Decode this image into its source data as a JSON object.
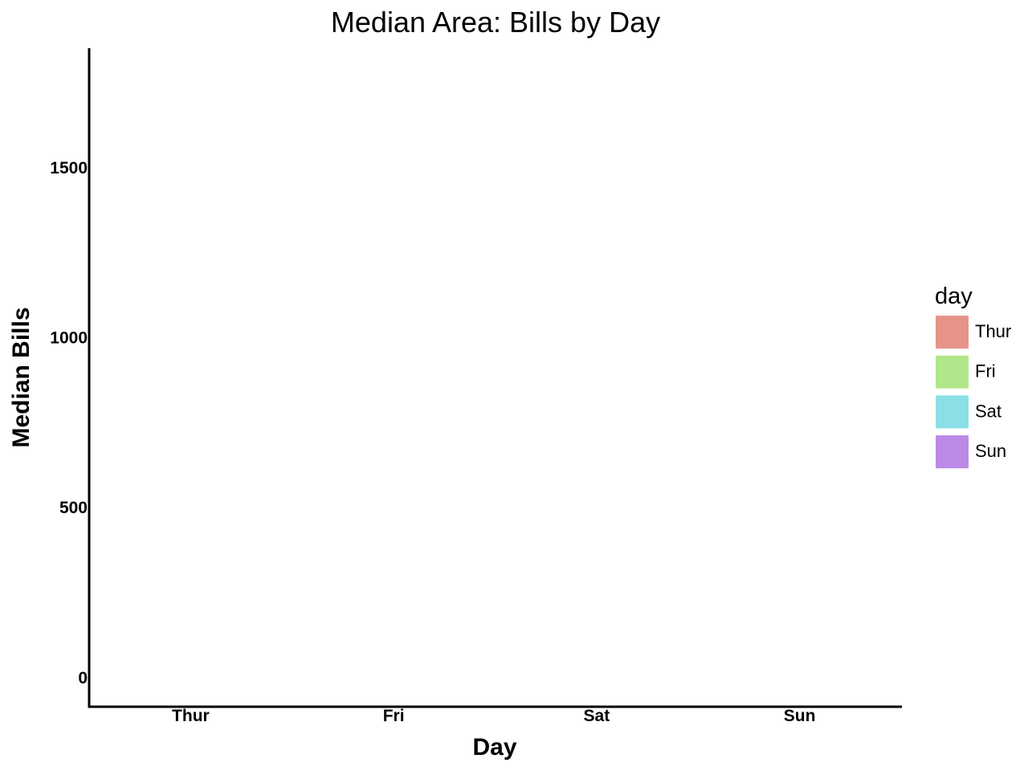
{
  "chart_data": {
    "type": "area",
    "title": "Median Area: Bills by Day",
    "xlabel": "Day",
    "ylabel": "Median Bills",
    "categories": [
      "Thur",
      "Fri",
      "Sat",
      "Sun"
    ],
    "series": [
      {
        "name": "Thur",
        "values": [
          0,
          0,
          0,
          0
        ]
      },
      {
        "name": "Fri",
        "values": [
          0,
          0,
          0,
          0
        ]
      },
      {
        "name": "Sat",
        "values": [
          0,
          0,
          0,
          0
        ]
      },
      {
        "name": "Sun",
        "values": [
          0,
          0,
          0,
          0
        ]
      }
    ],
    "y_ticks": [
      0,
      500,
      1000,
      1500
    ],
    "ylim": [
      -88,
      1850
    ],
    "grid": false,
    "legend": {
      "title": "day",
      "placement": "right",
      "entries": [
        {
          "label": "Thur",
          "color": "#e6948a"
        },
        {
          "label": "Fri",
          "color": "#b2e68a"
        },
        {
          "label": "Sat",
          "color": "#8ae0e6"
        },
        {
          "label": "Sun",
          "color": "#bc8ae6"
        }
      ]
    }
  }
}
